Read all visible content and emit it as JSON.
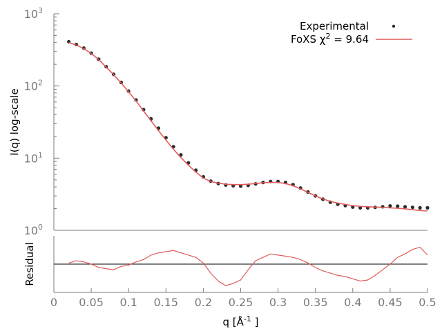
{
  "colors": {
    "experimental": "#2b2b2b",
    "fit": "#e05a5a",
    "axis": "#7a7a7a",
    "zero_line": "#000000"
  },
  "chart_data": [
    {
      "type": "scatter",
      "panel": "main",
      "ylabel": "I(q) log-scale",
      "y_scale": "log",
      "xlim": [
        0,
        0.5
      ],
      "ylim": [
        1,
        1000
      ],
      "y_ticks": [
        {
          "value": 1,
          "base": "10",
          "exp": "0"
        },
        {
          "value": 10,
          "base": "10",
          "exp": "1"
        },
        {
          "value": 100,
          "base": "10",
          "exp": "2"
        },
        {
          "value": 1000,
          "base": "10",
          "exp": "3"
        }
      ],
      "legend": {
        "placement": "top-right",
        "entries": [
          {
            "label": "Experimental",
            "style": "points"
          },
          {
            "label_prefix": "FoXS χ",
            "label_sup": "2",
            "label_suffix": " = 9.64",
            "style": "line"
          }
        ]
      },
      "series": [
        {
          "name": "Experimental",
          "style": "points",
          "x": [
            0.02,
            0.03,
            0.04,
            0.05,
            0.06,
            0.07,
            0.08,
            0.09,
            0.1,
            0.11,
            0.12,
            0.13,
            0.14,
            0.15,
            0.16,
            0.17,
            0.18,
            0.19,
            0.2,
            0.21,
            0.22,
            0.23,
            0.24,
            0.25,
            0.26,
            0.27,
            0.28,
            0.29,
            0.3,
            0.31,
            0.32,
            0.33,
            0.34,
            0.35,
            0.36,
            0.37,
            0.38,
            0.39,
            0.4,
            0.41,
            0.42,
            0.43,
            0.44,
            0.45,
            0.46,
            0.47,
            0.48,
            0.49,
            0.5
          ],
          "y": [
            410,
            375,
            335,
            285,
            235,
            185,
            145,
            112,
            85,
            64,
            47,
            35,
            26,
            19.2,
            14.4,
            11.1,
            8.6,
            6.8,
            5.5,
            4.8,
            4.45,
            4.25,
            4.15,
            4.1,
            4.2,
            4.4,
            4.6,
            4.75,
            4.75,
            4.6,
            4.3,
            3.85,
            3.4,
            3.0,
            2.7,
            2.45,
            2.3,
            2.2,
            2.1,
            2.05,
            2.05,
            2.08,
            2.12,
            2.18,
            2.16,
            2.12,
            2.08,
            2.05,
            2.05
          ]
        },
        {
          "name": "FoXS",
          "style": "line",
          "x": [
            0.02,
            0.03,
            0.04,
            0.05,
            0.06,
            0.07,
            0.08,
            0.09,
            0.1,
            0.11,
            0.12,
            0.13,
            0.14,
            0.15,
            0.16,
            0.17,
            0.18,
            0.19,
            0.2,
            0.21,
            0.22,
            0.23,
            0.24,
            0.25,
            0.26,
            0.27,
            0.28,
            0.29,
            0.3,
            0.31,
            0.32,
            0.33,
            0.34,
            0.35,
            0.36,
            0.37,
            0.38,
            0.39,
            0.4,
            0.41,
            0.42,
            0.43,
            0.44,
            0.45,
            0.46,
            0.47,
            0.48,
            0.49,
            0.5
          ],
          "y": [
            400,
            370,
            330,
            282,
            232,
            183,
            143,
            110,
            83,
            62,
            45,
            33,
            24,
            17.8,
            13.3,
            10.2,
            8.0,
            6.4,
            5.3,
            4.75,
            4.5,
            4.35,
            4.3,
            4.3,
            4.35,
            4.45,
            4.55,
            4.6,
            4.6,
            4.45,
            4.15,
            3.75,
            3.35,
            3.0,
            2.72,
            2.52,
            2.38,
            2.28,
            2.2,
            2.15,
            2.12,
            2.1,
            2.08,
            2.05,
            2.02,
            1.98,
            1.93,
            1.88,
            1.85
          ]
        }
      ]
    },
    {
      "type": "line",
      "panel": "residual",
      "title": "",
      "xlabel_prefix": "q [Å",
      "xlabel_sup": "-1",
      "xlabel_suffix": " ]",
      "ylabel": "Residual",
      "xlim": [
        0,
        0.5
      ],
      "ylim": [
        -2.5,
        2.5
      ],
      "x_ticks": [
        "0",
        "0.05",
        "0.1",
        "0.15",
        "0.2",
        "0.25",
        "0.3",
        "0.35",
        "0.4",
        "0.45",
        "0.5"
      ],
      "series": [
        {
          "name": "Residual",
          "x": [
            0.02,
            0.03,
            0.04,
            0.05,
            0.06,
            0.07,
            0.08,
            0.09,
            0.1,
            0.11,
            0.12,
            0.13,
            0.14,
            0.15,
            0.16,
            0.17,
            0.18,
            0.19,
            0.2,
            0.21,
            0.22,
            0.23,
            0.24,
            0.25,
            0.26,
            0.27,
            0.28,
            0.29,
            0.3,
            0.31,
            0.32,
            0.33,
            0.34,
            0.35,
            0.36,
            0.37,
            0.38,
            0.39,
            0.4,
            0.41,
            0.42,
            0.43,
            0.44,
            0.45,
            0.46,
            0.47,
            0.48,
            0.49,
            0.5
          ],
          "y": [
            0.1,
            0.3,
            0.2,
            0.0,
            -0.3,
            -0.4,
            -0.5,
            -0.2,
            -0.1,
            0.2,
            0.4,
            0.8,
            1.0,
            1.1,
            1.2,
            1.0,
            0.8,
            0.6,
            0.1,
            -0.8,
            -1.5,
            -1.9,
            -1.7,
            -1.4,
            -0.5,
            0.3,
            0.6,
            0.9,
            0.8,
            0.7,
            0.6,
            0.4,
            0.1,
            -0.3,
            -0.6,
            -0.8,
            -1.0,
            -1.1,
            -1.3,
            -1.5,
            -1.4,
            -1.0,
            -0.5,
            0.0,
            0.6,
            0.9,
            1.3,
            1.5,
            0.8
          ]
        }
      ]
    }
  ]
}
